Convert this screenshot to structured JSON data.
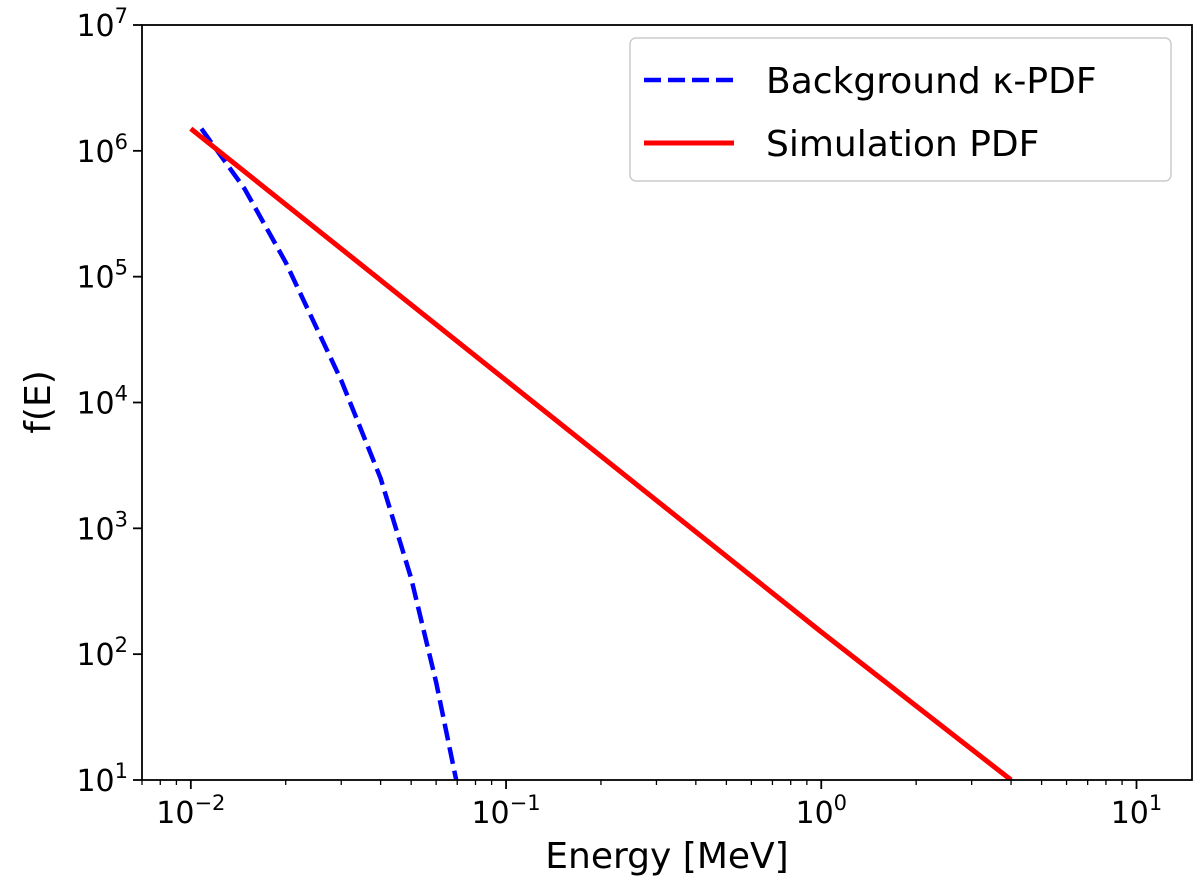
{
  "chart_data": {
    "type": "line",
    "xscale": "log",
    "yscale": "log",
    "xlim": [
      0.007,
      15
    ],
    "ylim": [
      10,
      10000000
    ],
    "xlabel": "Energy [MeV]",
    "ylabel": "f(E)",
    "xticks": [
      {
        "base": "10",
        "exp": "−2"
      },
      {
        "base": "10",
        "exp": "−1"
      },
      {
        "base": "10",
        "exp": "0"
      },
      {
        "base": "10",
        "exp": "1"
      }
    ],
    "yticks": [
      {
        "base": "10",
        "exp": "1"
      },
      {
        "base": "10",
        "exp": "2"
      },
      {
        "base": "10",
        "exp": "3"
      },
      {
        "base": "10",
        "exp": "4"
      },
      {
        "base": "10",
        "exp": "5"
      },
      {
        "base": "10",
        "exp": "6"
      },
      {
        "base": "10",
        "exp": "7"
      }
    ],
    "legend_position": "top-right",
    "series": [
      {
        "name": "Background κ-PDF",
        "color": "#0000ff",
        "style": "dashed",
        "x": [
          0.0108,
          0.0148,
          0.02,
          0.03,
          0.04,
          0.05,
          0.06,
          0.0695
        ],
        "y": [
          1500000,
          500000,
          130000,
          15000,
          2500,
          400,
          60,
          10
        ]
      },
      {
        "name": "Simulation PDF",
        "color": "#ff0000",
        "style": "solid",
        "x": [
          0.01,
          0.1,
          1,
          4.0
        ],
        "y": [
          1500000,
          15000,
          150,
          10
        ]
      }
    ]
  }
}
